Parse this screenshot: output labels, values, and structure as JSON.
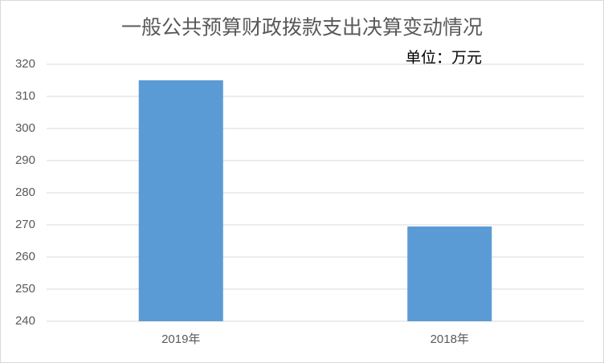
{
  "chart_data": {
    "type": "bar",
    "title": "一般公共预算财政拨款支出决算变动情况",
    "annotation": "单位：万元",
    "categories": [
      "2019年",
      "2018年"
    ],
    "values": [
      315,
      269.5
    ],
    "color": "#5b9bd5",
    "ylim": [
      240,
      320
    ],
    "yticks": [
      240,
      250,
      260,
      270,
      280,
      290,
      300,
      310,
      320
    ],
    "grid": true
  }
}
